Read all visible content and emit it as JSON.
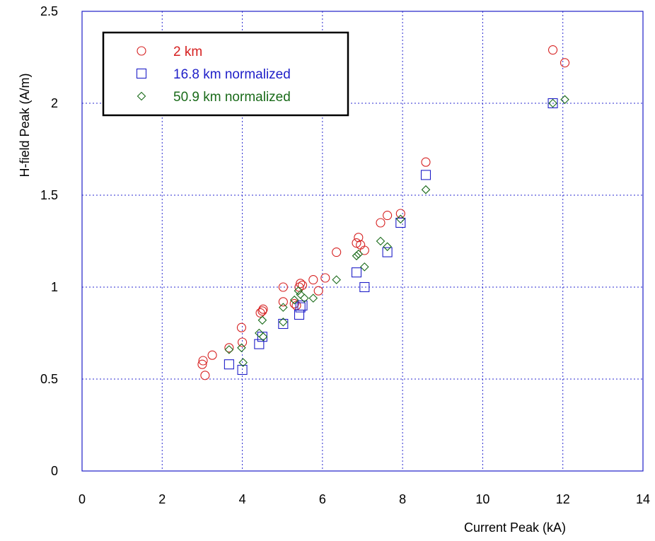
{
  "chart_data": {
    "type": "scatter",
    "title": "",
    "xlabel": "Current Peak  (kA)",
    "ylabel": "H-field Peak  (A/m)",
    "xlim": [
      0,
      14
    ],
    "ylim": [
      0,
      2.5
    ],
    "x_ticks": [
      "0",
      "2",
      "4",
      "6",
      "8",
      "10",
      "12",
      "14"
    ],
    "y_ticks": [
      "0",
      "0.5",
      "1",
      "1.5",
      "2",
      "2.5"
    ],
    "grid": true,
    "legend_position": "top-left",
    "series": [
      {
        "name": "2 km",
        "marker": "circle",
        "color": "#d62020",
        "points": [
          [
            3.0,
            0.58
          ],
          [
            3.02,
            0.6
          ],
          [
            3.07,
            0.52
          ],
          [
            3.25,
            0.63
          ],
          [
            3.67,
            0.67
          ],
          [
            3.98,
            0.78
          ],
          [
            4.0,
            0.7
          ],
          [
            4.45,
            0.86
          ],
          [
            4.5,
            0.87
          ],
          [
            4.52,
            0.88
          ],
          [
            5.02,
            1.0
          ],
          [
            5.02,
            0.92
          ],
          [
            5.3,
            0.91
          ],
          [
            5.35,
            0.9
          ],
          [
            5.42,
            1.0
          ],
          [
            5.45,
            1.02
          ],
          [
            5.5,
            1.01
          ],
          [
            5.77,
            1.04
          ],
          [
            5.9,
            0.98
          ],
          [
            6.07,
            1.05
          ],
          [
            6.35,
            1.19
          ],
          [
            6.85,
            1.24
          ],
          [
            6.9,
            1.27
          ],
          [
            6.95,
            1.23
          ],
          [
            7.05,
            1.2
          ],
          [
            7.45,
            1.35
          ],
          [
            7.62,
            1.39
          ],
          [
            7.95,
            1.4
          ],
          [
            8.58,
            1.68
          ],
          [
            11.75,
            2.29
          ],
          [
            12.05,
            2.22
          ]
        ]
      },
      {
        "name": "16.8 km normalized",
        "marker": "square",
        "color": "#1f1fc8",
        "points": [
          [
            3.67,
            0.58
          ],
          [
            4.0,
            0.55
          ],
          [
            4.42,
            0.69
          ],
          [
            4.5,
            0.73
          ],
          [
            5.02,
            0.8
          ],
          [
            5.42,
            0.85
          ],
          [
            5.45,
            0.89
          ],
          [
            5.5,
            0.9
          ],
          [
            6.85,
            1.08
          ],
          [
            7.05,
            1.0
          ],
          [
            7.62,
            1.19
          ],
          [
            7.95,
            1.35
          ],
          [
            8.58,
            1.61
          ],
          [
            11.75,
            2.0
          ]
        ]
      },
      {
        "name": "50.9 km normalized",
        "marker": "diamond",
        "color": "#1a6b1a",
        "points": [
          [
            3.67,
            0.66
          ],
          [
            3.98,
            0.67
          ],
          [
            4.02,
            0.59
          ],
          [
            4.42,
            0.75
          ],
          [
            4.5,
            0.82
          ],
          [
            4.52,
            0.73
          ],
          [
            5.02,
            0.89
          ],
          [
            5.02,
            0.81
          ],
          [
            5.3,
            0.93
          ],
          [
            5.4,
            0.98
          ],
          [
            5.45,
            0.96
          ],
          [
            5.55,
            0.94
          ],
          [
            5.77,
            0.94
          ],
          [
            6.35,
            1.04
          ],
          [
            6.85,
            1.17
          ],
          [
            6.9,
            1.18
          ],
          [
            7.05,
            1.11
          ],
          [
            7.45,
            1.25
          ],
          [
            7.62,
            1.22
          ],
          [
            7.95,
            1.37
          ],
          [
            8.58,
            1.53
          ],
          [
            11.75,
            2.0
          ],
          [
            12.05,
            2.02
          ]
        ]
      }
    ]
  }
}
